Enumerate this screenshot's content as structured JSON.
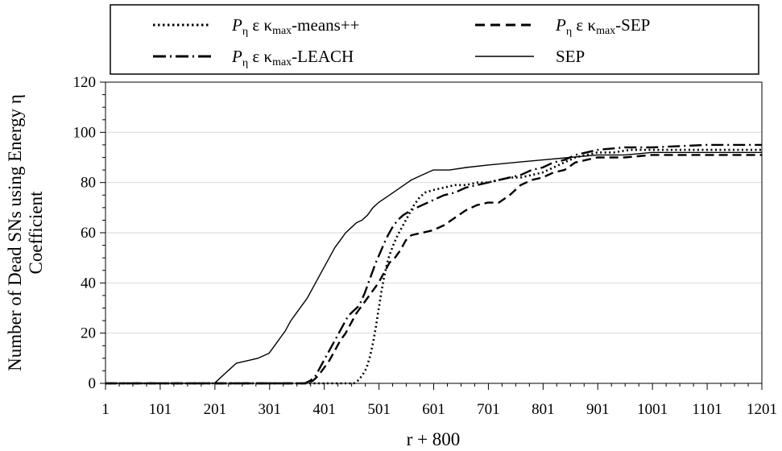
{
  "chart_data": {
    "type": "line",
    "title": "",
    "xlabel": "r + 800",
    "ylabel_lines": [
      "Number of Dead SNs using Energy η",
      "Coefficient"
    ],
    "x_ticks": [
      1,
      101,
      201,
      301,
      401,
      501,
      601,
      701,
      801,
      901,
      1001,
      1101,
      1201
    ],
    "y_ticks": [
      0,
      20,
      40,
      60,
      80,
      100,
      120
    ],
    "xlim": [
      1,
      1201
    ],
    "ylim": [
      0,
      120
    ],
    "grid": "horizontal",
    "legend_position": "top",
    "series": [
      {
        "name": "Pη ε κ max -means++",
        "style": "dotted",
        "points": [
          [
            1,
            0
          ],
          [
            455,
            0
          ],
          [
            462,
            1
          ],
          [
            470,
            3
          ],
          [
            478,
            6
          ],
          [
            485,
            11
          ],
          [
            490,
            16
          ],
          [
            495,
            22
          ],
          [
            500,
            29
          ],
          [
            505,
            36
          ],
          [
            510,
            42
          ],
          [
            515,
            47
          ],
          [
            520,
            51
          ],
          [
            527,
            55
          ],
          [
            535,
            59
          ],
          [
            545,
            63
          ],
          [
            555,
            67
          ],
          [
            565,
            71
          ],
          [
            575,
            74
          ],
          [
            585,
            76
          ],
          [
            600,
            77
          ],
          [
            620,
            78
          ],
          [
            640,
            79
          ],
          [
            660,
            79
          ],
          [
            680,
            80
          ],
          [
            700,
            80
          ],
          [
            720,
            81
          ],
          [
            740,
            82
          ],
          [
            760,
            82
          ],
          [
            780,
            83
          ],
          [
            800,
            84
          ],
          [
            820,
            86
          ],
          [
            840,
            88
          ],
          [
            860,
            90
          ],
          [
            880,
            91
          ],
          [
            900,
            92
          ],
          [
            930,
            92
          ],
          [
            960,
            93
          ],
          [
            1000,
            93
          ],
          [
            1100,
            93
          ],
          [
            1201,
            93
          ]
        ]
      },
      {
        "name": "Pη ε κ max -SEP",
        "style": "dashed",
        "points": [
          [
            1,
            0
          ],
          [
            370,
            0
          ],
          [
            380,
            1
          ],
          [
            390,
            3
          ],
          [
            400,
            6
          ],
          [
            410,
            9
          ],
          [
            420,
            13
          ],
          [
            430,
            17
          ],
          [
            440,
            20
          ],
          [
            450,
            24
          ],
          [
            460,
            28
          ],
          [
            470,
            31
          ],
          [
            480,
            34
          ],
          [
            490,
            37
          ],
          [
            500,
            40
          ],
          [
            510,
            44
          ],
          [
            520,
            48
          ],
          [
            530,
            50
          ],
          [
            540,
            53
          ],
          [
            550,
            57
          ],
          [
            560,
            59
          ],
          [
            580,
            60
          ],
          [
            600,
            61
          ],
          [
            620,
            63
          ],
          [
            640,
            66
          ],
          [
            660,
            69
          ],
          [
            680,
            71
          ],
          [
            700,
            72
          ],
          [
            720,
            72
          ],
          [
            740,
            75
          ],
          [
            760,
            79
          ],
          [
            780,
            81
          ],
          [
            800,
            82
          ],
          [
            820,
            84
          ],
          [
            840,
            85
          ],
          [
            860,
            88
          ],
          [
            880,
            89
          ],
          [
            900,
            90
          ],
          [
            950,
            90
          ],
          [
            1000,
            91
          ],
          [
            1100,
            91
          ],
          [
            1201,
            91
          ]
        ]
      },
      {
        "name": "Pη ε κ max -LEACH",
        "style": "dash-dot",
        "points": [
          [
            1,
            0
          ],
          [
            365,
            0
          ],
          [
            375,
            1
          ],
          [
            385,
            3
          ],
          [
            395,
            7
          ],
          [
            405,
            11
          ],
          [
            415,
            15
          ],
          [
            425,
            19
          ],
          [
            435,
            23
          ],
          [
            445,
            27
          ],
          [
            455,
            29
          ],
          [
            465,
            31
          ],
          [
            475,
            36
          ],
          [
            485,
            42
          ],
          [
            495,
            48
          ],
          [
            505,
            53
          ],
          [
            515,
            58
          ],
          [
            525,
            62
          ],
          [
            535,
            65
          ],
          [
            545,
            67
          ],
          [
            560,
            69
          ],
          [
            580,
            71
          ],
          [
            600,
            73
          ],
          [
            620,
            75
          ],
          [
            640,
            76
          ],
          [
            660,
            78
          ],
          [
            680,
            79
          ],
          [
            700,
            80
          ],
          [
            720,
            81
          ],
          [
            740,
            82
          ],
          [
            760,
            83
          ],
          [
            780,
            85
          ],
          [
            800,
            86
          ],
          [
            820,
            88
          ],
          [
            840,
            89
          ],
          [
            860,
            91
          ],
          [
            880,
            92
          ],
          [
            900,
            93
          ],
          [
            950,
            94
          ],
          [
            1000,
            94
          ],
          [
            1100,
            95
          ],
          [
            1201,
            95
          ]
        ]
      },
      {
        "name": "SEP",
        "style": "solid",
        "points": [
          [
            1,
            0
          ],
          [
            200,
            0
          ],
          [
            210,
            2
          ],
          [
            220,
            4
          ],
          [
            230,
            6
          ],
          [
            240,
            8
          ],
          [
            260,
            9
          ],
          [
            280,
            10
          ],
          [
            300,
            12
          ],
          [
            310,
            15
          ],
          [
            320,
            18
          ],
          [
            330,
            21
          ],
          [
            340,
            25
          ],
          [
            350,
            28
          ],
          [
            360,
            31
          ],
          [
            370,
            34
          ],
          [
            380,
            38
          ],
          [
            390,
            42
          ],
          [
            400,
            46
          ],
          [
            410,
            50
          ],
          [
            420,
            54
          ],
          [
            430,
            57
          ],
          [
            440,
            60
          ],
          [
            450,
            62
          ],
          [
            460,
            64
          ],
          [
            470,
            65
          ],
          [
            480,
            67
          ],
          [
            490,
            70
          ],
          [
            500,
            72
          ],
          [
            520,
            75
          ],
          [
            540,
            78
          ],
          [
            560,
            81
          ],
          [
            580,
            83
          ],
          [
            600,
            85
          ],
          [
            630,
            85
          ],
          [
            660,
            86
          ],
          [
            700,
            87
          ],
          [
            750,
            88
          ],
          [
            800,
            89
          ],
          [
            850,
            90
          ],
          [
            900,
            91
          ],
          [
            950,
            91
          ],
          [
            1000,
            92
          ],
          [
            1100,
            92
          ],
          [
            1201,
            92
          ]
        ]
      }
    ]
  }
}
